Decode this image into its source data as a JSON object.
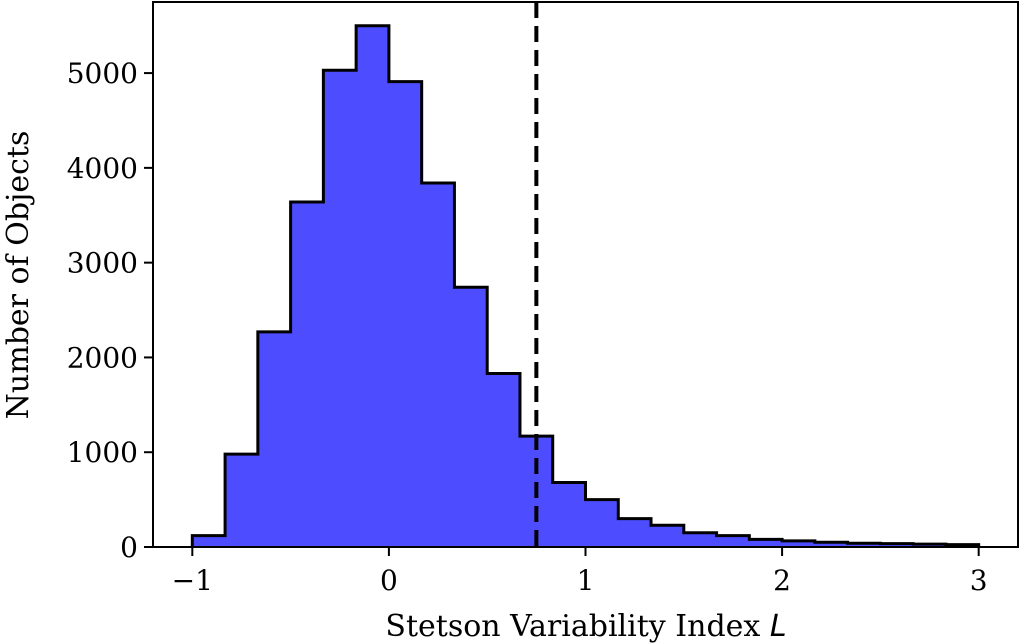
{
  "chart_data": {
    "type": "histogram",
    "xlabel_text": "Stetson Variability Index ",
    "xlabel_symbol": "L",
    "ylabel": "Number of Objects",
    "xlim": [
      -1.2,
      3.2
    ],
    "ylim": [
      0,
      5750
    ],
    "xticks": [
      -1,
      0,
      1,
      2,
      3
    ],
    "xtick_labels": [
      "−1",
      "0",
      "1",
      "2",
      "3"
    ],
    "yticks": [
      0,
      1000,
      2000,
      3000,
      4000,
      5000
    ],
    "ytick_labels": [
      "0",
      "1000",
      "2000",
      "3000",
      "4000",
      "5000"
    ],
    "bin_edges": [
      -1.0,
      -0.8333,
      -0.6667,
      -0.5,
      -0.3333,
      -0.1667,
      0.0,
      0.1667,
      0.3333,
      0.5,
      0.6667,
      0.8333,
      1.0,
      1.1667,
      1.3333,
      1.5,
      1.6667,
      1.8333,
      2.0,
      2.1667,
      2.3333,
      2.5,
      2.6667,
      2.8333,
      3.0
    ],
    "counts": [
      120,
      980,
      2270,
      3640,
      5030,
      5500,
      4910,
      3840,
      2740,
      1830,
      1170,
      680,
      500,
      300,
      230,
      150,
      120,
      80,
      65,
      50,
      40,
      35,
      30,
      25
    ],
    "fill_color": "#4d4dff",
    "edge_color": "#000000",
    "threshold_line": {
      "x": 0.75,
      "style": "dashed",
      "color": "#000000"
    },
    "grid": false
  }
}
